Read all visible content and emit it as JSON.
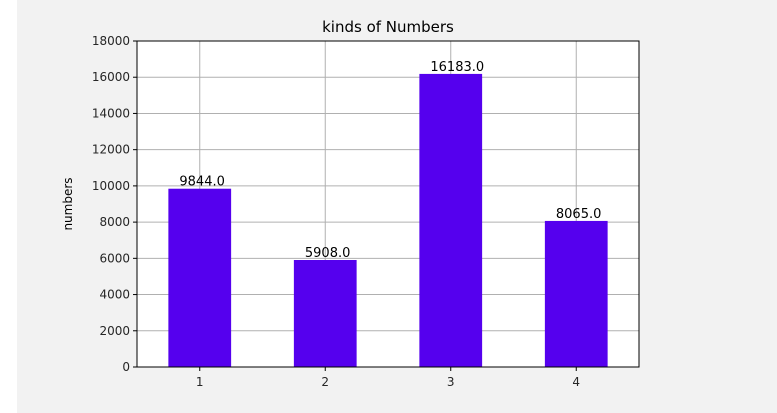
{
  "chart_data": {
    "type": "bar",
    "title": "kinds of Numbers",
    "xlabel": "",
    "ylabel": "numbers",
    "categories": [
      "1",
      "2",
      "3",
      "4"
    ],
    "values": [
      9844.0,
      5908.0,
      16183.0,
      8065.0
    ],
    "value_labels": [
      "9844.0",
      "5908.0",
      "16183.0",
      "8065.0"
    ],
    "ylim": [
      0,
      18000
    ],
    "yticks": [
      0,
      2000,
      4000,
      6000,
      8000,
      10000,
      12000,
      14000,
      16000,
      18000
    ],
    "ytick_labels": [
      "0",
      "2000",
      "4000",
      "6000",
      "8000",
      "10000",
      "12000",
      "14000",
      "16000",
      "18000"
    ],
    "grid": true,
    "bar_color": "#5500ee",
    "grid_color": "#b0b0b0",
    "plot_background": "#ffffff",
    "figure_background": "#f2f2f2"
  }
}
